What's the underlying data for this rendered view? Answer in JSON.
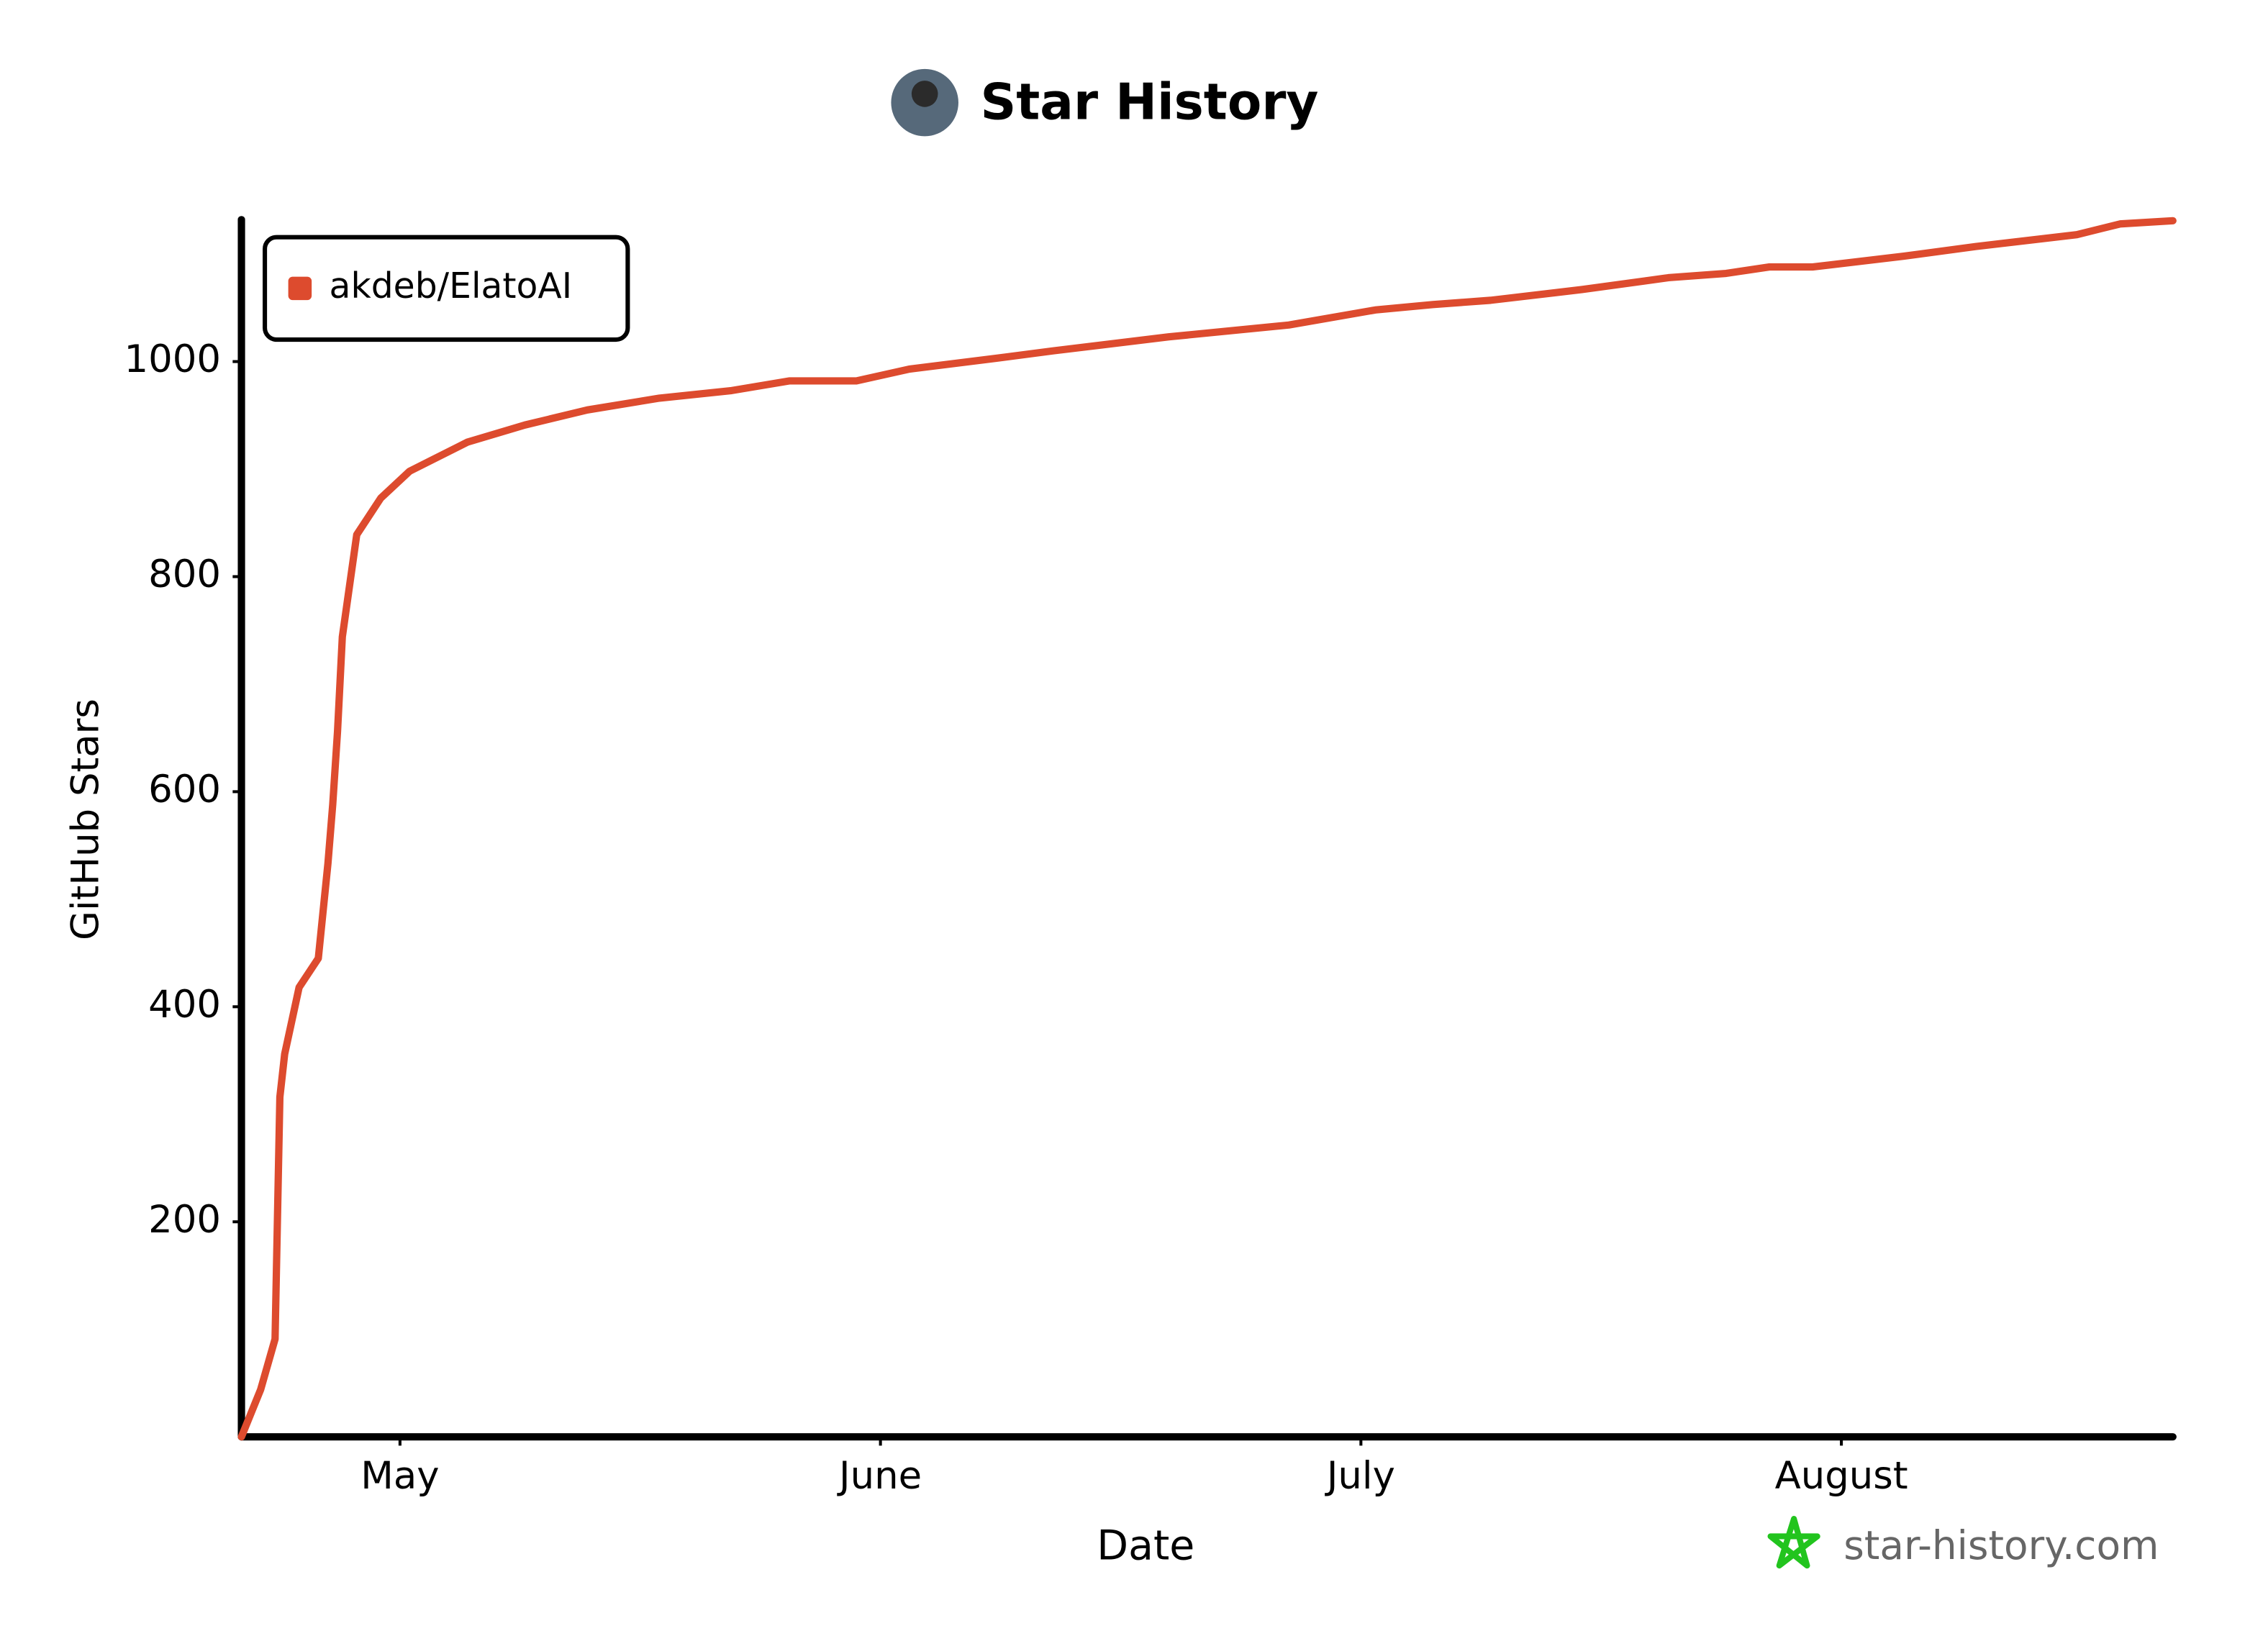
{
  "chart_data": {
    "type": "line",
    "title": "Star History",
    "x_label": "Date",
    "y_label": "GitHub Stars",
    "x": [
      0.67,
      0.71,
      0.74,
      0.75,
      0.76,
      0.79,
      0.83,
      0.85,
      0.86,
      0.87,
      0.88,
      0.91,
      0.96,
      1.02,
      1.14,
      1.26,
      1.39,
      1.54,
      1.69,
      1.81,
      1.95,
      2.06,
      2.24,
      2.36,
      2.6,
      2.85,
      3.03,
      3.15,
      3.27,
      3.46,
      3.64,
      3.76,
      3.85,
      3.94,
      4.13,
      4.28,
      4.49,
      4.58,
      4.69
    ],
    "series": [
      {
        "name": "akdeb/ElatoAI",
        "color": "#dd4b2e",
        "values": [
          0,
          44,
          91,
          316,
          356,
          418,
          445,
          533,
          588,
          656,
          744,
          839,
          873,
          898,
          925,
          941,
          955,
          966,
          973,
          982,
          982,
          993,
          1003,
          1010,
          1023,
          1034,
          1048,
          1053,
          1057,
          1067,
          1078,
          1082,
          1088,
          1088,
          1098,
          1107,
          1118,
          1128,
          1131
        ]
      }
    ],
    "xlim": [
      0.67,
      4.69
    ],
    "xticks": [
      {
        "value": 1,
        "label": "May"
      },
      {
        "value": 2,
        "label": "June"
      },
      {
        "value": 3,
        "label": "July"
      },
      {
        "value": 4,
        "label": "August"
      }
    ],
    "ylim": [
      0,
      1132
    ],
    "yticks": [
      200,
      400,
      600,
      800,
      1000
    ],
    "legend": "top-left",
    "watermark": "star-history.com"
  }
}
